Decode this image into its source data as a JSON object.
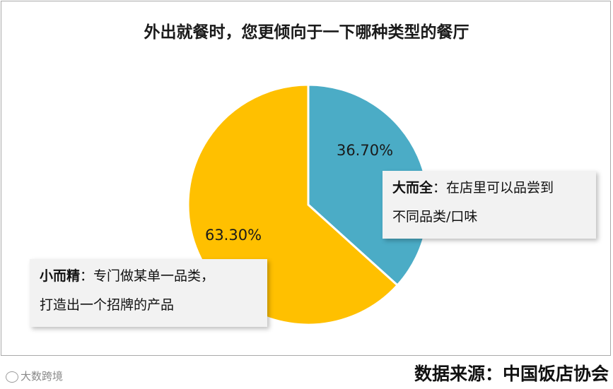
{
  "title": "外出就餐时，您更倾向于一下哪种类型的餐厅",
  "chart_data": {
    "type": "pie",
    "title": "外出就餐时，您更倾向于一下哪种类型的餐厅",
    "slices": [
      {
        "label": "大而全",
        "value": 36.7,
        "value_label": "36.70%",
        "color": "#4bacc6"
      },
      {
        "label": "小而精",
        "value": 63.3,
        "value_label": "63.30%",
        "color": "#ffc000"
      }
    ]
  },
  "annotations": {
    "big": {
      "title": "大而全",
      "sep": "：",
      "line1": "在店里可以品尝到",
      "line2": "不同品类/口味"
    },
    "small": {
      "title": "小而精",
      "sep": "：",
      "line1": "专门做某单一品类，",
      "line2": "打造出一个招牌的产品"
    }
  },
  "watermark": "大数跨境",
  "source": "数据来源：中国饭店协会"
}
